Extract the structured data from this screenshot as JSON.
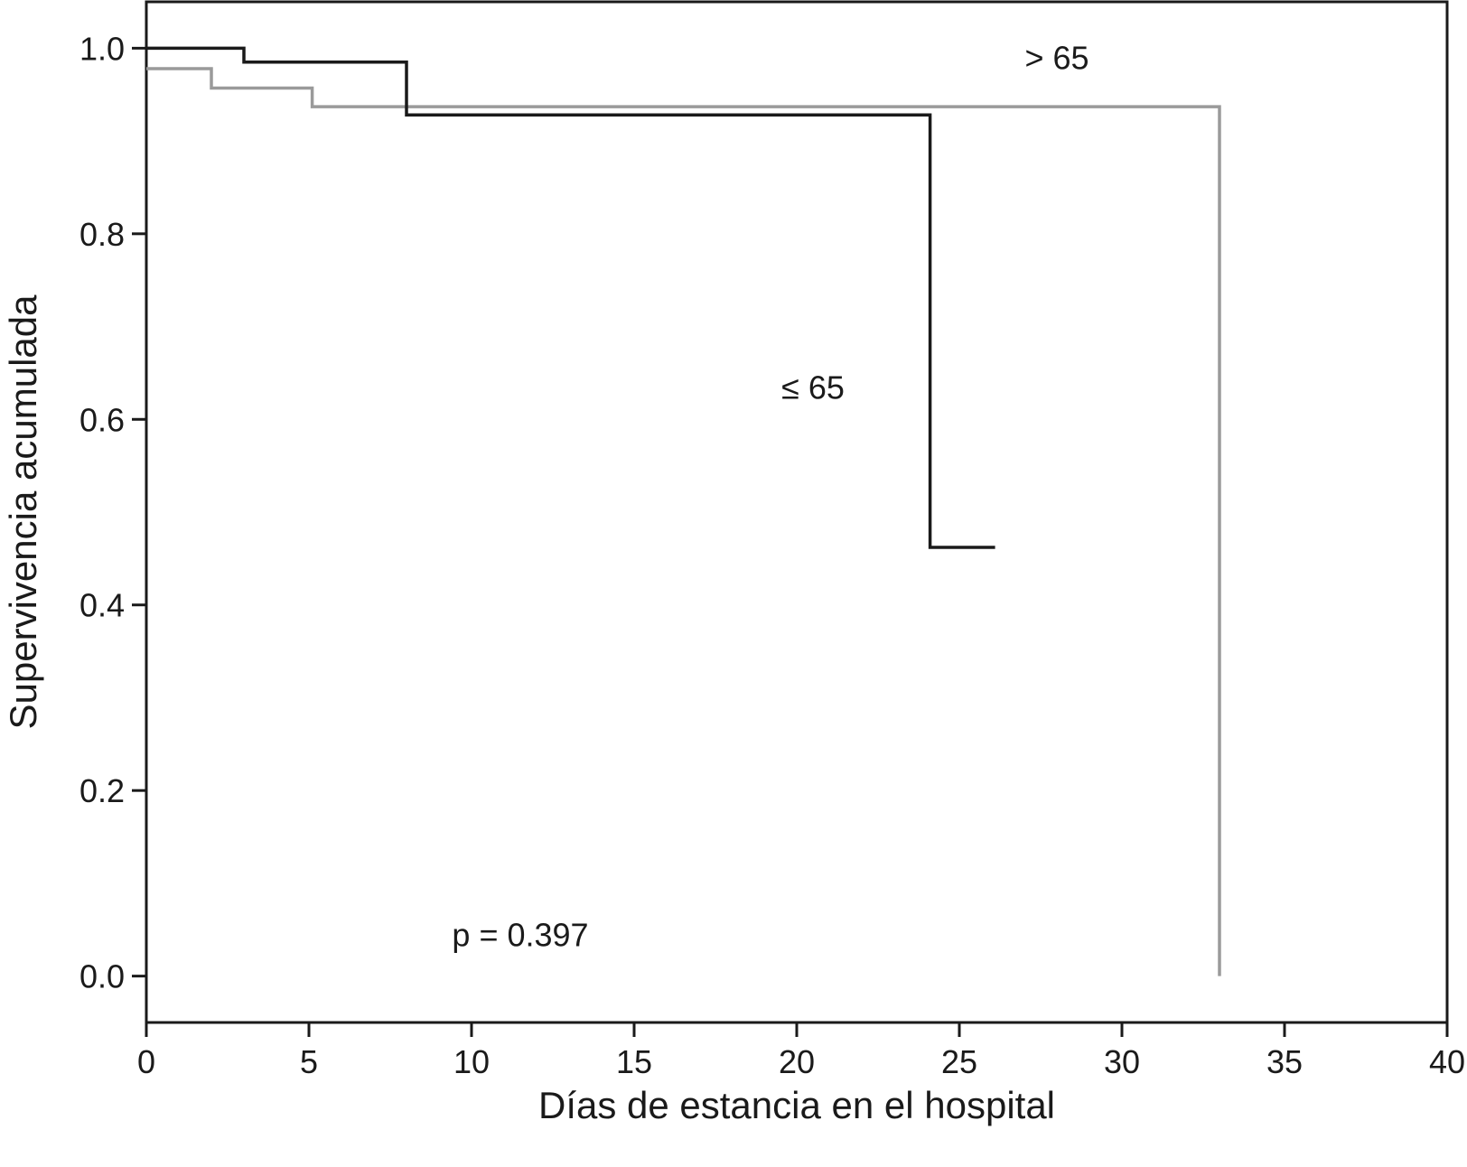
{
  "chart_data": {
    "type": "line",
    "step": true,
    "xlabel": "Días de estancia en el hospital",
    "ylabel": "Supervivencia acumulada",
    "xlim": [
      0,
      40
    ],
    "ylim": [
      -0.05,
      1.05
    ],
    "xticks": [
      0,
      5,
      10,
      15,
      20,
      25,
      30,
      35,
      40
    ],
    "xtick_labels": [
      "0",
      "5",
      "10",
      "15",
      "20",
      "25",
      "30",
      "35",
      "40"
    ],
    "yticks": [
      0.0,
      0.2,
      0.4,
      0.6,
      0.8,
      1.0
    ],
    "ytick_labels": [
      "0.0",
      "0.2",
      "0.4",
      "0.6",
      "0.8",
      "1.0"
    ],
    "grid": false,
    "series": [
      {
        "name": "≤ 65",
        "color": "#1a1a1a",
        "x": [
          0,
          3,
          3,
          8,
          8,
          24.1,
          24.1,
          26.1
        ],
        "y": [
          1.0,
          1.0,
          0.985,
          0.985,
          0.928,
          0.928,
          0.462,
          0.462
        ]
      },
      {
        "name": "> 65",
        "color": "#9a9a9a",
        "x": [
          0,
          2,
          2,
          5.1,
          5.1,
          33,
          33
        ],
        "y": [
          0.978,
          0.978,
          0.957,
          0.957,
          0.937,
          0.937,
          0.0
        ]
      }
    ],
    "annotations": [
      {
        "text": "> 65",
        "x": 28,
        "y": 0.99
      },
      {
        "text": "≤ 65",
        "x": 20.5,
        "y": 0.635
      },
      {
        "text": "p = 0.397",
        "x": 11.5,
        "y": 0.045
      }
    ]
  }
}
